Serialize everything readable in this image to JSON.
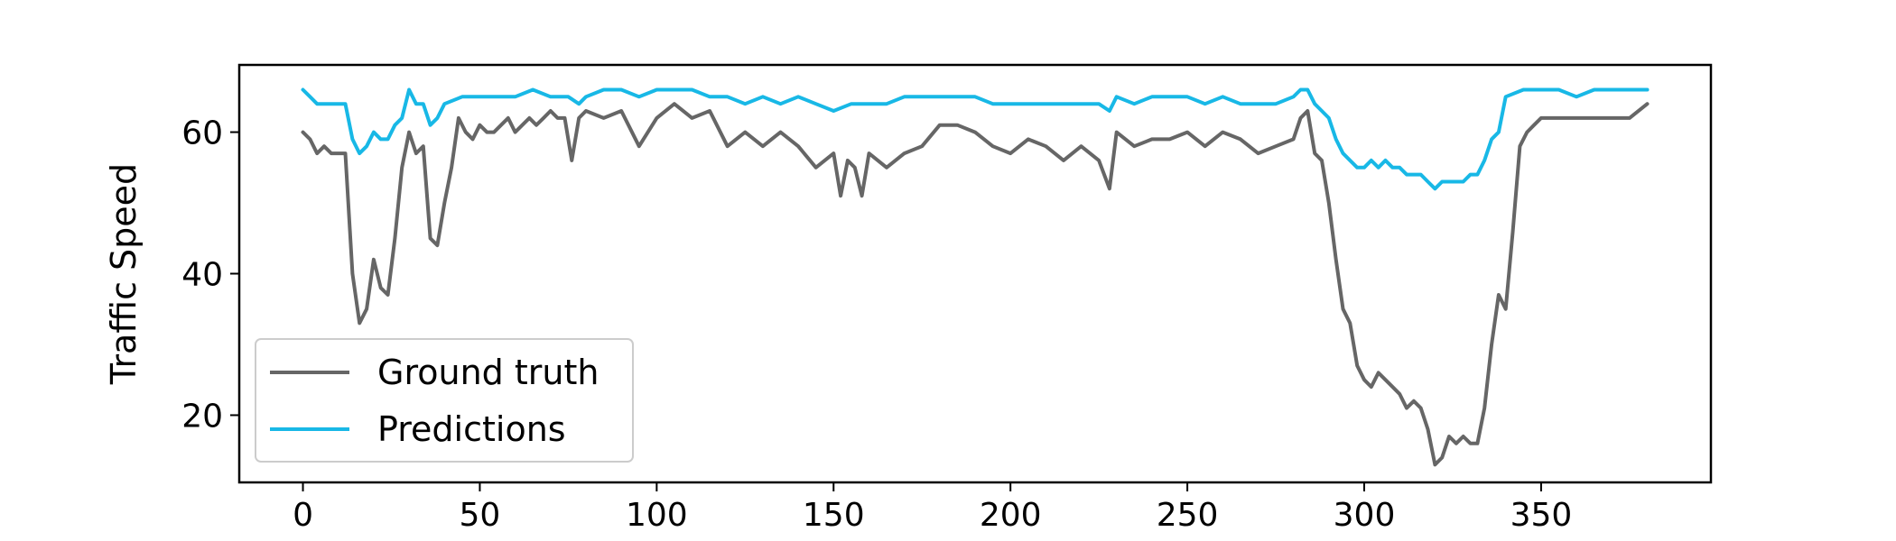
{
  "chart_data": {
    "type": "line",
    "title": "",
    "xlabel": "",
    "ylabel": "Traffic Speed",
    "xlim": [
      -18,
      398
    ],
    "ylim": [
      10.5,
      69.5
    ],
    "xticks": [
      0,
      50,
      100,
      150,
      200,
      250,
      300,
      350
    ],
    "yticks": [
      20,
      40,
      60
    ],
    "grid": false,
    "legend": "lower-left",
    "series": [
      {
        "name": "Ground truth",
        "color": "#666666",
        "x": [
          0,
          2,
          4,
          6,
          8,
          10,
          12,
          14,
          16,
          18,
          20,
          22,
          24,
          26,
          28,
          30,
          32,
          34,
          36,
          38,
          40,
          42,
          44,
          46,
          48,
          50,
          52,
          54,
          56,
          58,
          60,
          62,
          64,
          66,
          68,
          70,
          72,
          74,
          76,
          78,
          80,
          85,
          90,
          95,
          100,
          105,
          110,
          115,
          120,
          125,
          130,
          135,
          140,
          145,
          150,
          152,
          154,
          156,
          158,
          160,
          165,
          170,
          175,
          180,
          185,
          190,
          195,
          200,
          205,
          210,
          215,
          220,
          225,
          228,
          230,
          235,
          240,
          245,
          250,
          255,
          260,
          265,
          270,
          275,
          280,
          282,
          284,
          286,
          288,
          290,
          292,
          294,
          296,
          298,
          300,
          302,
          304,
          306,
          308,
          310,
          312,
          314,
          316,
          318,
          320,
          322,
          324,
          326,
          328,
          330,
          332,
          334,
          336,
          338,
          340,
          342,
          344,
          346,
          348,
          350,
          355,
          360,
          365,
          370,
          375,
          380
        ],
        "values": [
          60,
          59,
          57,
          58,
          57,
          57,
          57,
          40,
          33,
          35,
          42,
          38,
          37,
          45,
          55,
          60,
          57,
          58,
          45,
          44,
          50,
          55,
          62,
          60,
          59,
          61,
          60,
          60,
          61,
          62,
          60,
          61,
          62,
          61,
          62,
          63,
          62,
          62,
          56,
          62,
          63,
          62,
          63,
          58,
          62,
          64,
          62,
          63,
          58,
          60,
          58,
          60,
          58,
          55,
          57,
          51,
          56,
          55,
          51,
          57,
          55,
          57,
          58,
          61,
          61,
          60,
          58,
          57,
          59,
          58,
          56,
          58,
          56,
          52,
          60,
          58,
          59,
          59,
          60,
          58,
          60,
          59,
          57,
          58,
          59,
          62,
          63,
          57,
          56,
          50,
          42,
          35,
          33,
          27,
          25,
          24,
          26,
          25,
          24,
          23,
          21,
          22,
          21,
          18,
          13,
          14,
          17,
          16,
          17,
          16,
          16,
          21,
          30,
          37,
          35,
          46,
          58,
          60,
          61,
          62,
          62,
          62,
          62,
          62,
          62,
          64
        ],
        "stroke_width": 4
      },
      {
        "name": "Predictions",
        "color": "#18b8e6",
        "x": [
          0,
          2,
          4,
          6,
          8,
          10,
          12,
          14,
          16,
          18,
          20,
          22,
          24,
          26,
          28,
          30,
          32,
          34,
          36,
          38,
          40,
          45,
          50,
          55,
          60,
          65,
          70,
          75,
          78,
          80,
          85,
          90,
          95,
          100,
          105,
          110,
          115,
          120,
          125,
          130,
          135,
          140,
          145,
          150,
          155,
          160,
          165,
          170,
          175,
          180,
          185,
          190,
          195,
          200,
          205,
          210,
          215,
          220,
          225,
          228,
          230,
          235,
          240,
          245,
          250,
          255,
          260,
          265,
          270,
          275,
          280,
          282,
          284,
          286,
          288,
          290,
          292,
          294,
          296,
          298,
          300,
          302,
          304,
          306,
          308,
          310,
          312,
          314,
          316,
          318,
          320,
          322,
          324,
          326,
          328,
          330,
          332,
          334,
          336,
          338,
          340,
          345,
          350,
          355,
          360,
          365,
          370,
          375,
          380
        ],
        "values": [
          66,
          65,
          64,
          64,
          64,
          64,
          64,
          59,
          57,
          58,
          60,
          59,
          59,
          61,
          62,
          66,
          64,
          64,
          61,
          62,
          64,
          65,
          65,
          65,
          65,
          66,
          65,
          65,
          64,
          65,
          66,
          66,
          65,
          66,
          66,
          66,
          65,
          65,
          64,
          65,
          64,
          65,
          64,
          63,
          64,
          64,
          64,
          65,
          65,
          65,
          65,
          65,
          64,
          64,
          64,
          64,
          64,
          64,
          64,
          63,
          65,
          64,
          65,
          65,
          65,
          64,
          65,
          64,
          64,
          64,
          65,
          66,
          66,
          64,
          63,
          62,
          59,
          57,
          56,
          55,
          55,
          56,
          55,
          56,
          55,
          55,
          54,
          54,
          54,
          53,
          52,
          53,
          53,
          53,
          53,
          54,
          54,
          56,
          59,
          60,
          65,
          66,
          66,
          66,
          65,
          66,
          66,
          66,
          66
        ],
        "stroke_width": 4
      }
    ]
  }
}
